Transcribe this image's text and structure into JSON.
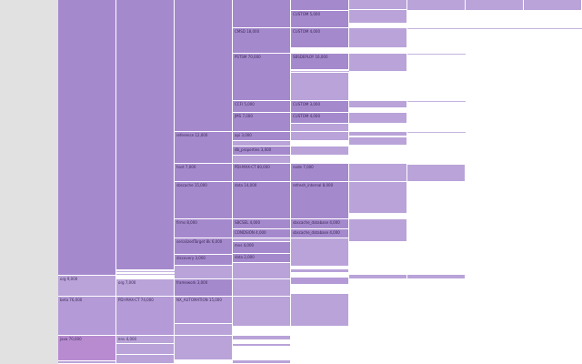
{
  "colors": {
    "sidebar": "#e1e1e1",
    "block": "#a589cd",
    "block_soft": "#b9a3d9",
    "block_mid": "#b49ad6",
    "block_pink": "#b88bd1"
  },
  "labels": {
    "c0_org": "org 9,000",
    "c0_beta": "beta 76,000",
    "c0_java": "java 70,000",
    "c1_org": "org 7,000",
    "c1_pdmax": "PDI-MAX-CT 74,000",
    "c1_env": "env 4,000",
    "c2_reference": "reference 12,000",
    "c2_host": "host 7,000",
    "c2_sbscache": "sbscache 15,000",
    "c2_firms": "firms 8,000",
    "c2_serialized": "serializedTarget 8k 6,000",
    "c2_discovery": "discovery 3,000",
    "c2_framework": "framework 3,000",
    "c2_nx_auto": "NX_AUTOMATION 15,000",
    "c3_cmsd": "CMSD 18,000",
    "c3_pstsm": "PSTSM 70,000",
    "c3_ccfi": "CCFI 5,000",
    "c3_jms": "JMS 7,000",
    "c3_api": "api 3,000",
    "c3_db": "db_properties 3,000",
    "c3_pdmax": "PDI-MAX-CT 80,000",
    "c3_data": "data 14,000",
    "c3_sbcsel": "SBCSEL 4,000",
    "c3_condsion": "CONDSION 4,000",
    "c3_mvs": "mvs 4,000",
    "c3_data2": "data 2,000",
    "c4_custom1": "CUSTOM 5,000",
    "c4_custom2": "CUSTOM 4,000",
    "c4_sbsdeploy": "SBSDEPLOY 16,000",
    "c4_custom3": "CUSTOM 3,000",
    "c4_custom4": "CUSTOM 4,000",
    "c4_node": "node 7,000",
    "c4_refresh": "refresh_internal 8,000",
    "c4_sbscache_db1": "sbscache_database 4,000",
    "c4_sbscache_db2": "sbscache_database 4,000"
  }
}
